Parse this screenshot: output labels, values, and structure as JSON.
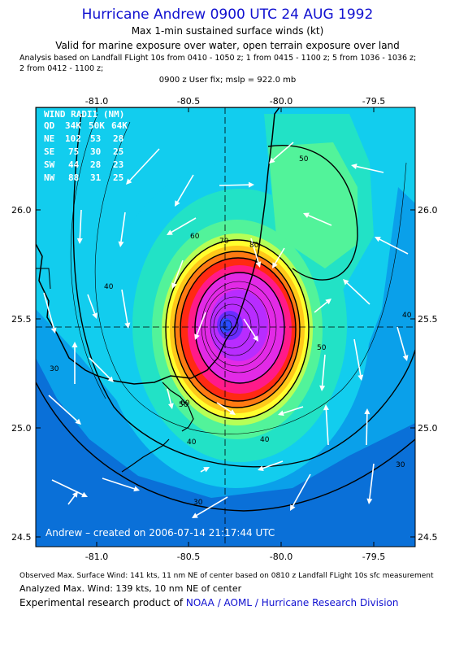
{
  "header": {
    "title": "Hurricane Andrew 0900 UTC 24 AUG 1992",
    "subtitle_1": "Max 1-min sustained surface winds (kt)",
    "subtitle_2": "Valid for marine exposure over water, open terrain exposure over land",
    "analysis_line_1": "Analysis based on  Landfall FLight 10s from 0410 - 1050 z;  1 from 0415 - 1100 z;  5 from 1036 - 1036 z;",
    "analysis_line_2": "2 from 0412 - 1100 z;",
    "fix": "0900 z User fix; mslp = 922.0 mb"
  },
  "map": {
    "lon_ticks": [
      "-81.0",
      "-80.5",
      "-80.0",
      "-79.5"
    ],
    "lat_ticks": [
      "26.0",
      "25.5",
      "25.0",
      "24.5"
    ],
    "contour_labels": [
      "30",
      "40",
      "50",
      "60",
      "70",
      "80"
    ],
    "credit_overlay": "Andrew – created on 2006-07-14 21:17:44 UTC",
    "center": {
      "lon": -80.3,
      "lat": 25.47
    },
    "colors": {
      "c20": "#0a70d8",
      "c30": "#0aa0ea",
      "c40": "#12cdee",
      "c50": "#22e2c6",
      "c60": "#52f39a",
      "c70": "#b6ff56",
      "c80": "#ffff2e",
      "c90": "#ffc81a",
      "c100": "#ff7a12",
      "c110": "#ff2a12",
      "c120": "#ff1a8a",
      "c130": "#e22ae6",
      "c140": "#b82cff",
      "c150": "#6a2cff",
      "c160": "#2a4cff"
    }
  },
  "wind_radii": {
    "title": "WIND RADII (NM)",
    "header": [
      "QD",
      "34K",
      "50K",
      "64K"
    ],
    "rows": [
      [
        "NE",
        "102",
        "53",
        "28"
      ],
      [
        "SE",
        "75",
        "30",
        "25"
      ],
      [
        "SW",
        "44",
        "28",
        "23"
      ],
      [
        "NW",
        "88",
        "31",
        "25"
      ]
    ]
  },
  "footer": {
    "observed": "Observed Max. Surface Wind: 141 kts, 11 nm NE of center based on 0810 z Landfall FLight 10s sfc measurement",
    "analyzed": "Analyzed Max. Wind: 139 kts, 10 nm NE of center",
    "credit_prefix": "Experimental research product of ",
    "credit_org": "NOAA / AOML / Hurricane Research Division"
  }
}
